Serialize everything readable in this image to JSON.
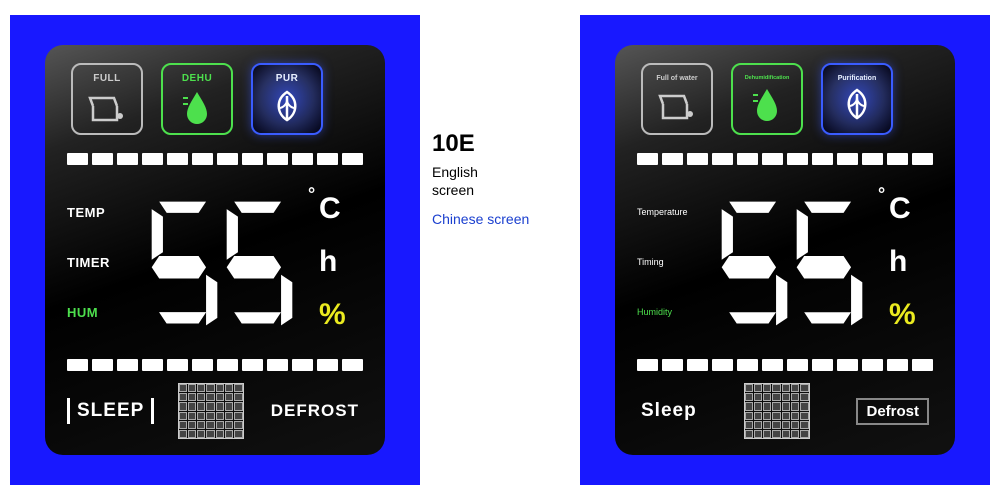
{
  "center": {
    "model": "10E",
    "line1": "English",
    "line2": "screen",
    "line3": "Chinese screen"
  },
  "left": {
    "icons": {
      "full": "FULL",
      "dehu": "DEHU",
      "pur": "PUR"
    },
    "side": {
      "temp": "TEMP",
      "timer": "TIMER",
      "hum": "HUM"
    },
    "display_value": "55",
    "units": {
      "c": "C",
      "h": "h",
      "pct": "%"
    },
    "bottom": {
      "sleep": "SLEEP",
      "defrost": "DEFROST"
    }
  },
  "right": {
    "icons": {
      "full": "Full of water",
      "dehu": "Dehumidification",
      "pur": "Purification"
    },
    "side": {
      "temp": "Temperature",
      "timer": "Timing",
      "hum": "Humidity"
    },
    "display_value": "55",
    "units": {
      "c": "C",
      "h": "h",
      "pct": "%"
    },
    "bottom": {
      "sleep": "Sleep",
      "defrost": "Defrost"
    }
  },
  "style": {
    "frame_color": "#1818ff",
    "screen_bg": "#000000",
    "green": "#4de04d",
    "blue_glow": "#3a5cff",
    "yellow": "#eaea1f",
    "segment_count": 12,
    "grid_cols": 7,
    "grid_rows": 6
  }
}
